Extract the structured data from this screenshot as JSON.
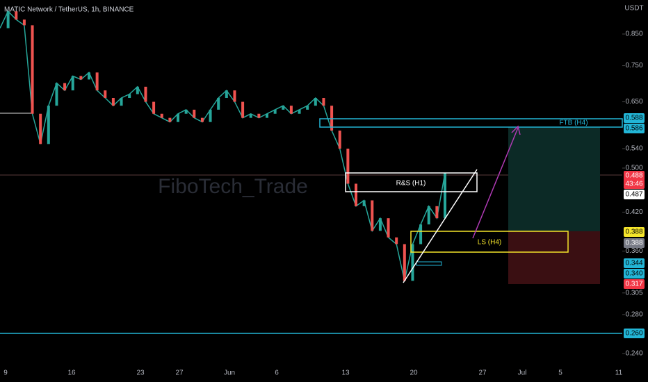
{
  "header": {
    "title": "MATIC Network / TetherUS, 1h, BINANCE",
    "currency": "USDT"
  },
  "watermark": "FiboTech_Trade",
  "price_axis": {
    "log_scale": true,
    "ticks": [
      {
        "value": 0.85,
        "label": "0.850"
      },
      {
        "value": 0.75,
        "label": "0.750"
      },
      {
        "value": 0.65,
        "label": "0.650"
      },
      {
        "value": 0.54,
        "label": "0.540"
      },
      {
        "value": 0.5,
        "label": "0.500"
      },
      {
        "value": 0.42,
        "label": "0.420"
      },
      {
        "value": 0.36,
        "label": "0.360"
      },
      0.305,
      {
        "value": 0.28,
        "label": "0.280"
      },
      {
        "value": 0.24,
        "label": "0.240"
      }
    ]
  },
  "time_axis": {
    "labels": [
      "9",
      "16",
      "23",
      "27",
      "Jun",
      "6",
      "13",
      "20",
      "27",
      "Jul",
      "5",
      "11"
    ]
  },
  "price_series": {
    "color": "#26a69a",
    "values": [
      0.87,
      0.93,
      0.9,
      0.88,
      0.62,
      0.55,
      0.64,
      0.7,
      0.68,
      0.72,
      0.71,
      0.73,
      0.68,
      0.66,
      0.64,
      0.66,
      0.67,
      0.69,
      0.65,
      0.62,
      0.61,
      0.6,
      0.62,
      0.63,
      0.61,
      0.6,
      0.63,
      0.66,
      0.68,
      0.65,
      0.61,
      0.62,
      0.61,
      0.62,
      0.63,
      0.64,
      0.62,
      0.63,
      0.64,
      0.66,
      0.64,
      0.58,
      0.54,
      0.47,
      0.43,
      0.44,
      0.39,
      0.41,
      0.38,
      0.37,
      0.32,
      0.37,
      0.4,
      0.43,
      0.41,
      0.49
    ]
  },
  "price_tags": [
    {
      "value": 0.588,
      "color": "#22b5d6"
    },
    {
      "value": 0.586,
      "color": "#22b5d6"
    },
    {
      "value": 0.488,
      "color": "#f23645"
    },
    {
      "text": "43:46",
      "color": "#f23645"
    },
    {
      "value": 0.487,
      "color": "#ffffff"
    },
    {
      "value": 0.388,
      "color": "#f5e52b"
    },
    {
      "value": 0.388,
      "color": "#787b86"
    },
    {
      "value": 0.344,
      "color": "#22b5d6"
    },
    {
      "value": {
        "value": 0.34,
        "label": "0.340"
      },
      "color": "#22b5d6"
    },
    {
      "value": 0.317,
      "color": "#f23645"
    },
    {
      "value": {
        "value": 0.26,
        "label": "0.260"
      },
      "color": "#22b5d6"
    }
  ],
  "annotations": {
    "ftb": "FTB (H4)",
    "rs": "R&S (H1)",
    "ls": "LS (H4)"
  }
}
